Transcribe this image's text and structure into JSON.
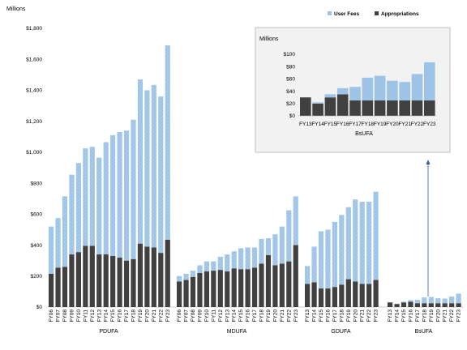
{
  "colors": {
    "user_fees": "#9dc3e6",
    "appropriations": "#404040",
    "inset_user_fees": "#9dc3e6",
    "inset_appropriations": "#404040",
    "arrow": "#2e5f9e"
  },
  "chart_data": {
    "type": "bar",
    "stacked": true,
    "ylabel": "Millions",
    "ylim": [
      0,
      1800
    ],
    "yticks": [
      "$0",
      "$200",
      "$400",
      "$600",
      "$800",
      "$1,000",
      "$1,200",
      "$1,400",
      "$1,600",
      "$1,800"
    ],
    "yticks_values": [
      0,
      200,
      400,
      600,
      800,
      1000,
      1200,
      1400,
      1600,
      1800
    ],
    "legend_position": "top-right",
    "series_names": [
      "User Fees",
      "Appropriations"
    ],
    "groups": [
      {
        "name": "PDUFA",
        "categories": [
          "FY06",
          "FY07",
          "FY08",
          "FY09",
          "FY10",
          "FY11",
          "FY12",
          "FY13",
          "FY14",
          "FY15",
          "FY16",
          "FY17",
          "FY18",
          "FY19",
          "FY20",
          "FY21",
          "FY22",
          "FY23"
        ],
        "appropriations": [
          215,
          255,
          260,
          340,
          355,
          395,
          395,
          340,
          340,
          330,
          320,
          300,
          310,
          410,
          390,
          385,
          350,
          435
        ],
        "user_fees": [
          305,
          320,
          455,
          515,
          575,
          630,
          640,
          625,
          725,
          780,
          810,
          840,
          900,
          1060,
          1010,
          1050,
          1010,
          1255
        ]
      },
      {
        "name": "MDUFA",
        "categories": [
          "FY06",
          "FY07",
          "FY08",
          "FY09",
          "FY10",
          "FY11",
          "FY12",
          "FY13",
          "FY14",
          "FY15",
          "FY16",
          "FY17",
          "FY18",
          "FY19",
          "FY20",
          "FY21",
          "FY22",
          "FY23"
        ],
        "appropriations": [
          165,
          175,
          195,
          220,
          230,
          235,
          240,
          230,
          250,
          245,
          245,
          255,
          280,
          335,
          270,
          280,
          295,
          400
        ],
        "user_fees": [
          35,
          40,
          40,
          50,
          65,
          60,
          85,
          110,
          110,
          135,
          140,
          130,
          160,
          110,
          200,
          240,
          330,
          315
        ]
      },
      {
        "name": "GDUFA",
        "categories": [
          "FY13",
          "FY14",
          "FY15",
          "FY16",
          "FY17",
          "FY18",
          "FY19",
          "FY20",
          "FY21",
          "FY22",
          "FY23"
        ],
        "appropriations": [
          150,
          160,
          120,
          120,
          130,
          145,
          180,
          165,
          150,
          150,
          175
        ],
        "user_fees": [
          115,
          230,
          370,
          380,
          420,
          450,
          465,
          530,
          530,
          530,
          570
        ]
      },
      {
        "name": "BsUFA",
        "categories": [
          "FY13",
          "FY14",
          "FY15",
          "FY16",
          "FY17",
          "FY18",
          "FY19",
          "FY20",
          "FY21",
          "FY22",
          "FY23"
        ],
        "appropriations": [
          30,
          20,
          30,
          35,
          25,
          25,
          25,
          25,
          25,
          25,
          25
        ],
        "user_fees": [
          0,
          2,
          5,
          10,
          22,
          37,
          40,
          32,
          30,
          43,
          62
        ]
      }
    ],
    "inset": {
      "title": "BsUFA",
      "ylabel": "Millions",
      "ylim": [
        0,
        100
      ],
      "yticks": [
        "$0",
        "$20",
        "$40",
        "$60",
        "$80",
        "$100"
      ],
      "yticks_values": [
        0,
        20,
        40,
        60,
        80,
        100
      ],
      "categories": [
        "FY13",
        "FY14",
        "FY15",
        "FY16",
        "FY17",
        "FY18",
        "FY19",
        "FY20",
        "FY21",
        "FY22",
        "FY23"
      ],
      "appropriations": [
        30,
        20,
        30,
        35,
        25,
        25,
        25,
        25,
        25,
        25,
        25
      ],
      "user_fees": [
        0,
        2,
        5,
        10,
        22,
        37,
        40,
        32,
        30,
        43,
        62
      ]
    }
  }
}
